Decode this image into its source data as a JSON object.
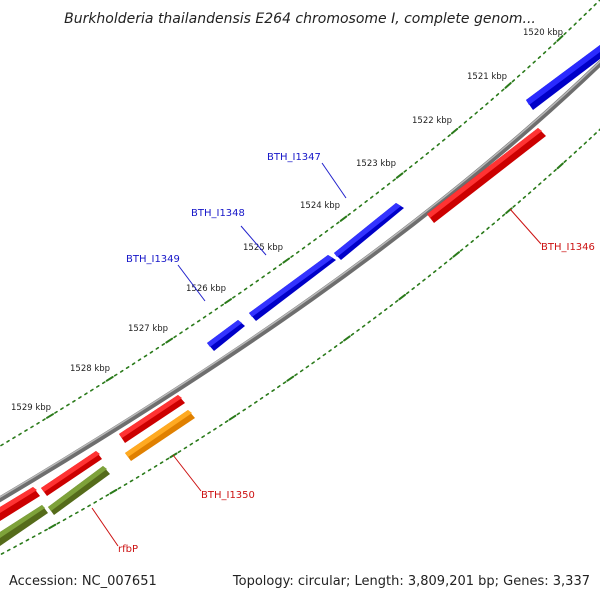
{
  "title": "Burkholderia thailandensis E264 chromosome I, complete genom...",
  "footer": {
    "accession": "Accession: NC_007651",
    "stats": "Topology: circular; Length: 3,809,201 bp; Genes: 3,337"
  },
  "colors": {
    "backbone": "#8a8a8a",
    "forward_gene": "#1010ee",
    "reverse_gene": "#ee1010",
    "orange_gene": "#ff9900",
    "olive_gene": "#6b8e23",
    "tick": "#2a7a1a"
  },
  "ticks": [
    {
      "label": "1520 kbp",
      "pos": 1520
    },
    {
      "label": "1521 kbp",
      "pos": 1521
    },
    {
      "label": "1522 kbp",
      "pos": 1522
    },
    {
      "label": "1523 kbp",
      "pos": 1523
    },
    {
      "label": "1524 kbp",
      "pos": 1524
    },
    {
      "label": "1525 kbp",
      "pos": 1525
    },
    {
      "label": "1526 kbp",
      "pos": 1526
    },
    {
      "label": "1527 kbp",
      "pos": 1527
    },
    {
      "label": "1528 kbp",
      "pos": 1528
    },
    {
      "label": "1529 kbp",
      "pos": 1529
    }
  ],
  "forward_genes": [
    {
      "label": "BTH_I1347"
    },
    {
      "label": "BTH_I1348"
    },
    {
      "label": "BTH_I1349"
    }
  ],
  "reverse_genes": [
    {
      "label": "BTH_I1346"
    },
    {
      "label": "BTH_I1350"
    },
    {
      "label": "rfbP"
    }
  ]
}
